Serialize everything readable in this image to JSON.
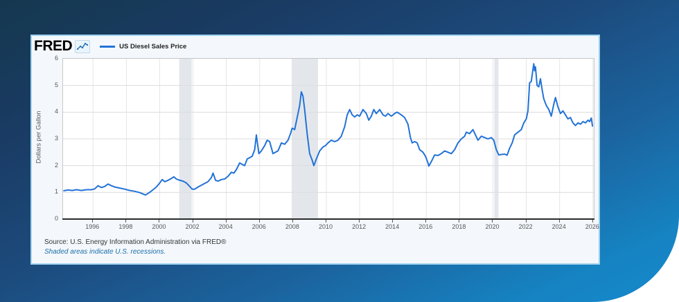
{
  "header": {
    "logo_text": "FRED",
    "legend_label": "US Diesel Sales Price"
  },
  "footer": {
    "source": "Source: U.S. Energy Information Administration via FRED®",
    "note": "Shaded areas indicate U.S. recessions."
  },
  "chart_data": {
    "type": "line",
    "title": "US Diesel Sales Price",
    "ylabel": "Dollars per Gallon",
    "xlabel": "",
    "ylim": [
      0,
      6
    ],
    "y_ticks": [
      0,
      1,
      2,
      3,
      4,
      5,
      6
    ],
    "x_domain": [
      1994.2,
      2026.05
    ],
    "x_ticks": [
      1996,
      1998,
      2000,
      2002,
      2004,
      2006,
      2008,
      2010,
      2012,
      2014,
      2016,
      2018,
      2020,
      2022,
      2024,
      2026
    ],
    "grid": true,
    "legend_position": "top-left",
    "recessions": [
      [
        2001.17,
        2001.92
      ],
      [
        2007.92,
        2009.5
      ],
      [
        2020.08,
        2020.33
      ]
    ],
    "colors": {
      "line": "#2272d8",
      "grid_h": "#dcdcdc",
      "grid_v": "#e6e6e6",
      "recession_band": "#e3e7eb",
      "axis": "#2a2a2a",
      "tick_text": "#555555"
    },
    "series": [
      {
        "name": "US Diesel Sales Price",
        "units": "Dollars per Gallon",
        "points": [
          [
            1994.25,
            1.06
          ],
          [
            1994.5,
            1.09
          ],
          [
            1994.75,
            1.07
          ],
          [
            1995.0,
            1.1
          ],
          [
            1995.3,
            1.07
          ],
          [
            1995.6,
            1.1
          ],
          [
            1995.9,
            1.1
          ],
          [
            1996.1,
            1.13
          ],
          [
            1996.3,
            1.25
          ],
          [
            1996.5,
            1.18
          ],
          [
            1996.7,
            1.22
          ],
          [
            1996.9,
            1.31
          ],
          [
            1997.1,
            1.25
          ],
          [
            1997.3,
            1.2
          ],
          [
            1997.6,
            1.16
          ],
          [
            1997.9,
            1.12
          ],
          [
            1998.2,
            1.07
          ],
          [
            1998.5,
            1.04
          ],
          [
            1998.8,
            0.99
          ],
          [
            1999.0,
            0.94
          ],
          [
            1999.15,
            0.9
          ],
          [
            1999.4,
            1.0
          ],
          [
            1999.6,
            1.1
          ],
          [
            1999.8,
            1.2
          ],
          [
            2000.0,
            1.35
          ],
          [
            2000.15,
            1.48
          ],
          [
            2000.3,
            1.4
          ],
          [
            2000.5,
            1.45
          ],
          [
            2000.7,
            1.52
          ],
          [
            2000.85,
            1.58
          ],
          [
            2001.0,
            1.5
          ],
          [
            2001.2,
            1.45
          ],
          [
            2001.4,
            1.42
          ],
          [
            2001.6,
            1.35
          ],
          [
            2001.8,
            1.22
          ],
          [
            2001.95,
            1.12
          ],
          [
            2002.1,
            1.12
          ],
          [
            2002.3,
            1.2
          ],
          [
            2002.6,
            1.3
          ],
          [
            2002.9,
            1.4
          ],
          [
            2003.1,
            1.55
          ],
          [
            2003.2,
            1.72
          ],
          [
            2003.35,
            1.45
          ],
          [
            2003.5,
            1.42
          ],
          [
            2003.7,
            1.48
          ],
          [
            2003.9,
            1.5
          ],
          [
            2004.1,
            1.6
          ],
          [
            2004.3,
            1.75
          ],
          [
            2004.45,
            1.72
          ],
          [
            2004.6,
            1.85
          ],
          [
            2004.8,
            2.1
          ],
          [
            2004.95,
            2.05
          ],
          [
            2005.1,
            2.0
          ],
          [
            2005.25,
            2.25
          ],
          [
            2005.4,
            2.3
          ],
          [
            2005.55,
            2.35
          ],
          [
            2005.7,
            2.6
          ],
          [
            2005.8,
            3.15
          ],
          [
            2005.95,
            2.45
          ],
          [
            2006.1,
            2.55
          ],
          [
            2006.3,
            2.75
          ],
          [
            2006.45,
            2.95
          ],
          [
            2006.6,
            2.9
          ],
          [
            2006.8,
            2.45
          ],
          [
            2006.95,
            2.5
          ],
          [
            2007.1,
            2.55
          ],
          [
            2007.3,
            2.85
          ],
          [
            2007.5,
            2.8
          ],
          [
            2007.7,
            2.95
          ],
          [
            2007.85,
            3.2
          ],
          [
            2007.95,
            3.4
          ],
          [
            2008.1,
            3.35
          ],
          [
            2008.25,
            3.8
          ],
          [
            2008.4,
            4.25
          ],
          [
            2008.5,
            4.76
          ],
          [
            2008.6,
            4.6
          ],
          [
            2008.7,
            4.1
          ],
          [
            2008.85,
            3.2
          ],
          [
            2009.0,
            2.45
          ],
          [
            2009.15,
            2.2
          ],
          [
            2009.25,
            2.0
          ],
          [
            2009.4,
            2.25
          ],
          [
            2009.6,
            2.55
          ],
          [
            2009.8,
            2.7
          ],
          [
            2009.95,
            2.75
          ],
          [
            2010.1,
            2.85
          ],
          [
            2010.3,
            2.95
          ],
          [
            2010.5,
            2.9
          ],
          [
            2010.7,
            2.95
          ],
          [
            2010.9,
            3.1
          ],
          [
            2011.1,
            3.45
          ],
          [
            2011.25,
            3.9
          ],
          [
            2011.4,
            4.1
          ],
          [
            2011.55,
            3.9
          ],
          [
            2011.7,
            3.82
          ],
          [
            2011.85,
            3.9
          ],
          [
            2012.0,
            3.85
          ],
          [
            2012.2,
            4.1
          ],
          [
            2012.4,
            3.95
          ],
          [
            2012.55,
            3.7
          ],
          [
            2012.7,
            3.85
          ],
          [
            2012.85,
            4.1
          ],
          [
            2013.0,
            3.95
          ],
          [
            2013.2,
            4.1
          ],
          [
            2013.4,
            3.9
          ],
          [
            2013.55,
            3.85
          ],
          [
            2013.7,
            3.95
          ],
          [
            2013.9,
            3.85
          ],
          [
            2014.1,
            3.95
          ],
          [
            2014.25,
            4.0
          ],
          [
            2014.5,
            3.9
          ],
          [
            2014.7,
            3.8
          ],
          [
            2014.9,
            3.55
          ],
          [
            2015.05,
            3.05
          ],
          [
            2015.15,
            2.85
          ],
          [
            2015.3,
            2.9
          ],
          [
            2015.45,
            2.85
          ],
          [
            2015.6,
            2.6
          ],
          [
            2015.8,
            2.5
          ],
          [
            2015.95,
            2.35
          ],
          [
            2016.1,
            2.1
          ],
          [
            2016.15,
            1.98
          ],
          [
            2016.3,
            2.15
          ],
          [
            2016.5,
            2.4
          ],
          [
            2016.7,
            2.38
          ],
          [
            2016.9,
            2.45
          ],
          [
            2017.1,
            2.55
          ],
          [
            2017.3,
            2.5
          ],
          [
            2017.5,
            2.45
          ],
          [
            2017.7,
            2.6
          ],
          [
            2017.9,
            2.85
          ],
          [
            2018.1,
            3.0
          ],
          [
            2018.3,
            3.1
          ],
          [
            2018.4,
            3.25
          ],
          [
            2018.6,
            3.2
          ],
          [
            2018.8,
            3.35
          ],
          [
            2018.95,
            3.15
          ],
          [
            2019.1,
            2.95
          ],
          [
            2019.3,
            3.1
          ],
          [
            2019.5,
            3.05
          ],
          [
            2019.7,
            3.0
          ],
          [
            2019.9,
            3.05
          ],
          [
            2020.05,
            2.95
          ],
          [
            2020.2,
            2.6
          ],
          [
            2020.35,
            2.4
          ],
          [
            2020.55,
            2.42
          ],
          [
            2020.7,
            2.43
          ],
          [
            2020.85,
            2.39
          ],
          [
            2021.0,
            2.65
          ],
          [
            2021.15,
            2.85
          ],
          [
            2021.3,
            3.15
          ],
          [
            2021.5,
            3.25
          ],
          [
            2021.7,
            3.35
          ],
          [
            2021.85,
            3.6
          ],
          [
            2022.0,
            3.75
          ],
          [
            2022.1,
            4.05
          ],
          [
            2022.2,
            5.1
          ],
          [
            2022.3,
            5.15
          ],
          [
            2022.4,
            5.6
          ],
          [
            2022.45,
            5.81
          ],
          [
            2022.5,
            5.55
          ],
          [
            2022.55,
            5.7
          ],
          [
            2022.65,
            5.0
          ],
          [
            2022.75,
            4.95
          ],
          [
            2022.85,
            5.25
          ],
          [
            2022.95,
            4.85
          ],
          [
            2023.05,
            4.5
          ],
          [
            2023.2,
            4.25
          ],
          [
            2023.35,
            4.1
          ],
          [
            2023.5,
            3.85
          ],
          [
            2023.65,
            4.3
          ],
          [
            2023.75,
            4.55
          ],
          [
            2023.9,
            4.2
          ],
          [
            2024.05,
            3.95
          ],
          [
            2024.2,
            4.05
          ],
          [
            2024.35,
            3.9
          ],
          [
            2024.5,
            3.75
          ],
          [
            2024.65,
            3.8
          ],
          [
            2024.8,
            3.6
          ],
          [
            2024.95,
            3.5
          ],
          [
            2025.1,
            3.6
          ],
          [
            2025.25,
            3.55
          ],
          [
            2025.4,
            3.65
          ],
          [
            2025.55,
            3.6
          ],
          [
            2025.7,
            3.7
          ],
          [
            2025.8,
            3.65
          ],
          [
            2025.9,
            3.78
          ],
          [
            2025.97,
            3.48
          ]
        ]
      }
    ]
  }
}
